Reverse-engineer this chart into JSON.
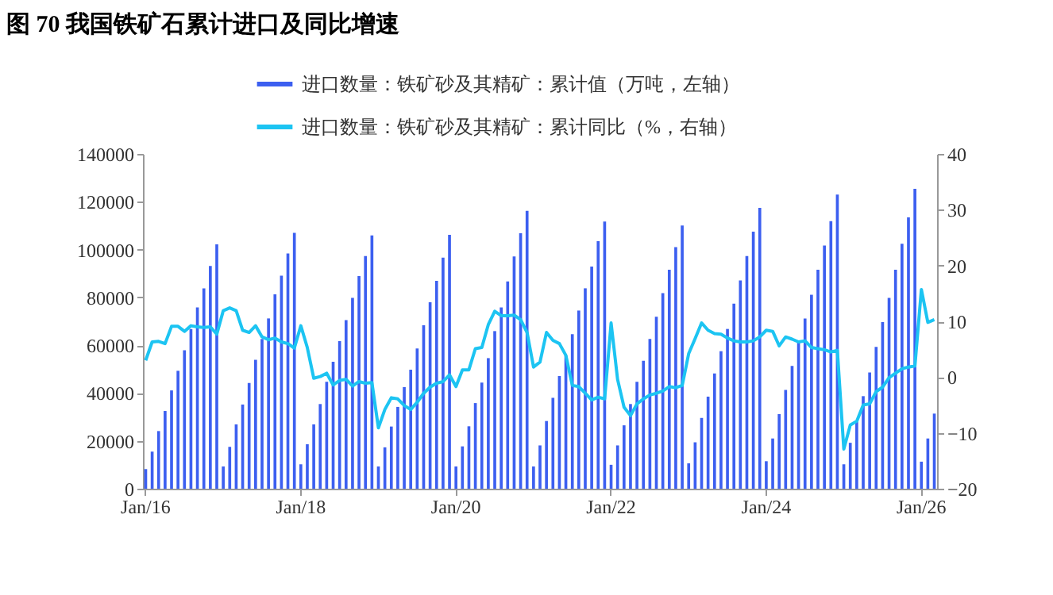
{
  "chart_data": {
    "type": "bar",
    "title": "图 70  我国铁矿石累计进口及同比增速",
    "categories": [
      "Jan/16",
      null,
      null,
      null,
      null,
      null,
      null,
      null,
      null,
      null,
      null,
      null,
      null,
      null,
      null,
      null,
      null,
      null,
      null,
      null,
      null,
      null,
      null,
      null,
      "Jan/18",
      null,
      null,
      null,
      null,
      null,
      null,
      null,
      null,
      null,
      null,
      null,
      null,
      null,
      null,
      null,
      null,
      null,
      null,
      null,
      null,
      null,
      null,
      null,
      "Jan/20",
      null,
      null,
      null,
      null,
      null,
      null,
      null,
      null,
      null,
      null,
      null,
      null,
      null,
      null,
      null,
      null,
      null,
      null,
      null,
      null,
      null,
      null,
      null,
      "Jan/22",
      null,
      null,
      null,
      null,
      null,
      null,
      null,
      null,
      null,
      null,
      null,
      null,
      null,
      null,
      null,
      null,
      null,
      null,
      null,
      null,
      null,
      null,
      null,
      "Jan/24",
      null,
      null,
      null,
      null,
      null,
      null,
      null,
      null,
      null,
      null,
      null,
      null,
      null,
      null,
      null,
      null,
      null,
      null,
      null,
      null,
      null,
      null,
      null,
      "Jan/26",
      null,
      null
    ],
    "series": [
      {
        "name": "进口数量：铁矿砂及其精矿：累计值（万吨，左轴）",
        "color": "#3c5ff0",
        "values": [
          8200,
          15500,
          24100,
          32500,
          41100,
          49300,
          57900,
          66800,
          75800,
          83800,
          93100,
          102200,
          9300,
          17500,
          26900,
          35200,
          44200,
          53900,
          62600,
          71200,
          81300,
          89100,
          98400,
          107000,
          10200,
          18600,
          26900,
          35400,
          44700,
          53100,
          61700,
          70500,
          79800,
          88900,
          97300,
          105900,
          9300,
          17300,
          26000,
          34200,
          42500,
          49800,
          58600,
          68300,
          78000,
          86900,
          96600,
          106200,
          9300,
          17700,
          26100,
          35800,
          44400,
          54600,
          65900,
          75800,
          86700,
          97100,
          106800,
          116200,
          9300,
          18100,
          28300,
          38000,
          47100,
          55700,
          64600,
          74500,
          83800,
          92900,
          103500,
          111700,
          10000,
          18100,
          26500,
          35400,
          44700,
          53500,
          62600,
          71900,
          81800,
          91600,
          101000,
          110100,
          10600,
          19400,
          29600,
          38500,
          48200,
          57500,
          66800,
          77400,
          87100,
          97300,
          107500,
          117400,
          11500,
          21000,
          31200,
          41300,
          51300,
          61700,
          71200,
          81100,
          91600,
          101700,
          111900,
          123000,
          10200,
          19200,
          28100,
          38700,
          48600,
          59300,
          69700,
          79800,
          91600,
          102400,
          113500,
          125400,
          11300,
          21000,
          31400
        ]
      },
      {
        "name": "进口数量：铁矿砂及其精矿：累计同比（%，右轴）",
        "type": "line",
        "axis": "y2",
        "color": "#1cc4f2",
        "values": [
          3.0,
          6.3,
          6.4,
          6.0,
          9.1,
          9.1,
          8.2,
          9.2,
          9.0,
          8.9,
          9.0,
          7.7,
          11.9,
          12.4,
          11.9,
          8.4,
          8.0,
          9.2,
          7.2,
          6.7,
          7.0,
          6.3,
          6.0,
          5.2,
          9.2,
          5.3,
          -0.2,
          0.1,
          0.7,
          -1.4,
          -0.6,
          -0.4,
          -1.6,
          -0.8,
          -1.1,
          -1.0,
          -9.1,
          -5.8,
          -3.7,
          -3.9,
          -5.1,
          -5.8,
          -4.5,
          -2.9,
          -1.8,
          -1.1,
          -0.8,
          0.4,
          -1.7,
          1.3,
          1.3,
          5.1,
          5.3,
          9.4,
          11.8,
          11.0,
          11.0,
          11.1,
          10.3,
          8.0,
          1.8,
          2.7,
          8.0,
          6.6,
          6.0,
          3.9,
          -1.5,
          -1.7,
          -2.9,
          -4.1,
          -3.6,
          -3.9,
          9.7,
          -0.4,
          -5.4,
          -6.9,
          -4.8,
          -3.9,
          -3.2,
          -2.9,
          -2.5,
          -1.7,
          -1.9,
          -1.5,
          4.2,
          6.9,
          9.7,
          8.4,
          7.8,
          7.7,
          7.0,
          6.5,
          6.3,
          6.3,
          6.5,
          7.2,
          8.4,
          8.2,
          5.6,
          7.2,
          6.8,
          6.3,
          6.5,
          5.3,
          5.1,
          4.9,
          4.5,
          4.8,
          -12.9,
          -8.6,
          -7.9,
          -5.0,
          -4.8,
          -2.6,
          -1.8,
          -0.1,
          0.7,
          1.5,
          1.8,
          2.0,
          15.7,
          9.8,
          10.3
        ]
      }
    ],
    "ylim": [
      0,
      140000
    ],
    "yticks": [
      0,
      20000,
      40000,
      60000,
      80000,
      100000,
      120000,
      140000
    ],
    "y2lim": [
      -20,
      40
    ],
    "y2ticks": [
      -20,
      -10,
      0,
      10,
      20,
      30,
      40
    ],
    "legend": "top",
    "grid": false
  }
}
